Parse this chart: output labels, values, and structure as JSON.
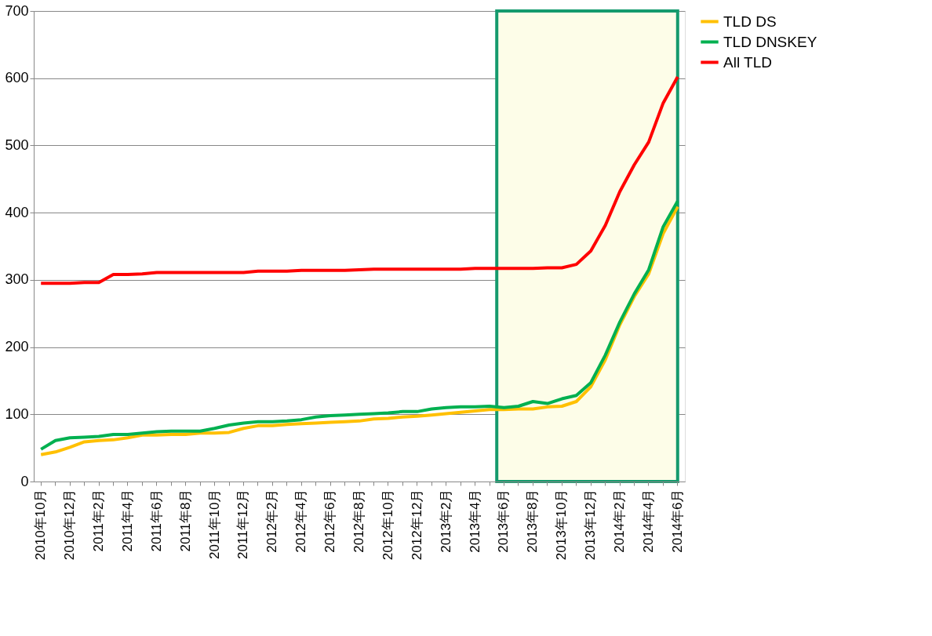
{
  "chart_data": {
    "type": "line",
    "categories": [
      "2010年10月",
      null,
      "2010年12月",
      null,
      "2011年2月",
      null,
      "2011年4月",
      null,
      "2011年6月",
      null,
      "2011年8月",
      null,
      "2011年10月",
      null,
      "2011年12月",
      null,
      "2012年2月",
      null,
      "2012年4月",
      null,
      "2012年6月",
      null,
      "2012年8月",
      null,
      "2012年10月",
      null,
      "2012年12月",
      null,
      "2013年2月",
      null,
      "2013年4月",
      null,
      "2013年6月",
      null,
      "2013年8月",
      null,
      "2013年10月",
      null,
      "2013年12月",
      null,
      "2014年2月",
      null,
      "2014年4月",
      null,
      "2014年6月"
    ],
    "series": [
      {
        "name": "TLD DS",
        "color": "#ffc000",
        "values": [
          40,
          44,
          51,
          59,
          61,
          62,
          65,
          69,
          69,
          70,
          70,
          72,
          72,
          73,
          79,
          83,
          83,
          85,
          86,
          87,
          88,
          89,
          90,
          93,
          94,
          96,
          97,
          99,
          101,
          103,
          105,
          107,
          107,
          108,
          108,
          111,
          112,
          119,
          141,
          181,
          233,
          275,
          309,
          369,
          409
        ]
      },
      {
        "name": "TLD DNSKEY",
        "color": "#00b050",
        "values": [
          48,
          61,
          65,
          66,
          67,
          70,
          70,
          72,
          74,
          75,
          75,
          75,
          79,
          84,
          87,
          89,
          89,
          90,
          92,
          96,
          98,
          99,
          100,
          101,
          102,
          104,
          104,
          108,
          110,
          111,
          111,
          112,
          110,
          112,
          119,
          116,
          123,
          128,
          147,
          188,
          237,
          279,
          315,
          379,
          417
        ]
      },
      {
        "name": "All TLD",
        "color": "#ff0000",
        "values": [
          295,
          295,
          295,
          296,
          296,
          308,
          308,
          309,
          311,
          311,
          311,
          311,
          311,
          311,
          311,
          313,
          313,
          313,
          314,
          314,
          314,
          314,
          315,
          316,
          316,
          316,
          316,
          316,
          316,
          316,
          317,
          317,
          317,
          317,
          317,
          318,
          318,
          323,
          343,
          381,
          431,
          471,
          505,
          563,
          602
        ]
      }
    ],
    "ylim": [
      0,
      700
    ],
    "yticks": [
      0,
      100,
      200,
      300,
      400,
      500,
      600,
      700
    ],
    "grid": "y",
    "legend": "right",
    "line_style": "solid",
    "marker": "none",
    "bands": [
      {
        "axis": "x",
        "from": "2013年6月",
        "to": "2014年6月",
        "color": "#fdfde8"
      }
    ]
  }
}
